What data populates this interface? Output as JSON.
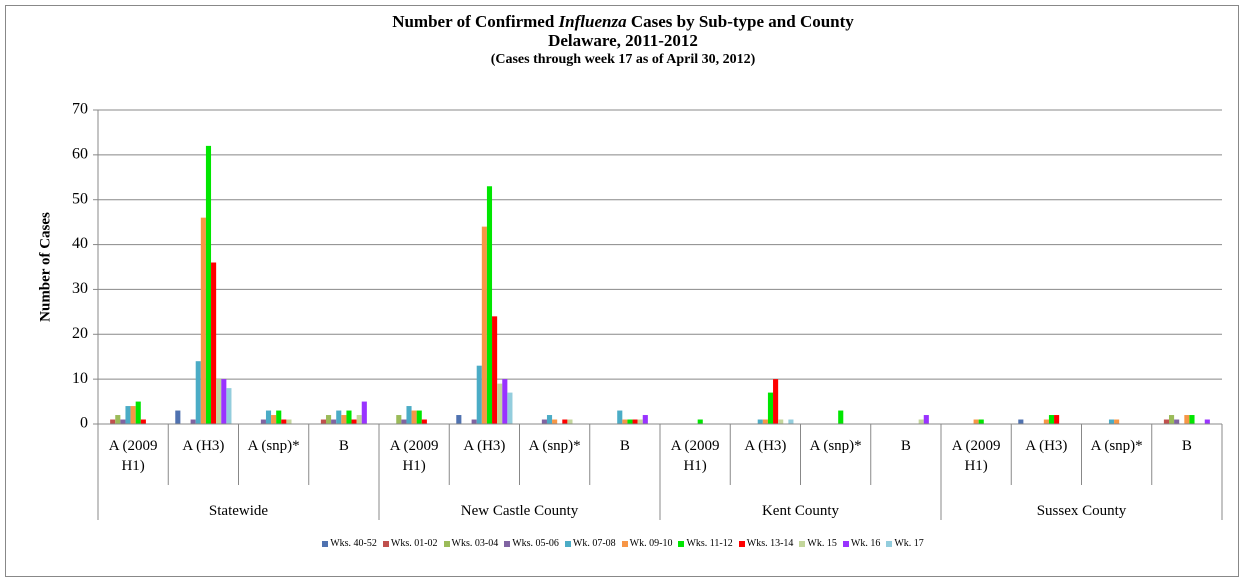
{
  "chart_data": {
    "type": "bar",
    "title": [
      "Number of Confirmed",
      "Influenza",
      "Cases by Sub-type and County"
    ],
    "subtitle": "Delaware, 2011-2012",
    "note": "(Cases through week 17 as of April 30, 2012)",
    "y_label": "Number of Cases",
    "groups": [
      "Statewide",
      "New Castle County",
      "Kent County",
      "Sussex County"
    ],
    "categories": [
      "A (2009 H1)",
      "A (H3)",
      "A (snp)*",
      "B",
      "A (2009 H1)",
      "A (H3)",
      "A (snp)*",
      "B",
      "A (2009 H1)",
      "A (H3)",
      "A (snp)*",
      "B",
      "A (2009 H1)",
      "A (H3)",
      "A (snp)*",
      "B"
    ],
    "ylim": [
      0,
      70
    ],
    "yticks": [
      0,
      10,
      20,
      30,
      40,
      50,
      60,
      70
    ],
    "grid": true,
    "legend": "bottom",
    "series": [
      {
        "name": "Wks. 40-52",
        "color": "#4f72b0",
        "values": [
          0,
          3,
          0,
          0,
          0,
          2,
          0,
          0,
          0,
          0,
          0,
          0,
          0,
          1,
          0,
          0
        ]
      },
      {
        "name": "Wks. 01-02",
        "color": "#c0504d",
        "values": [
          1,
          0,
          0,
          1,
          0,
          0,
          0,
          0,
          0,
          0,
          0,
          0,
          0,
          0,
          0,
          1
        ]
      },
      {
        "name": "Wks. 03-04",
        "color": "#9bbb59",
        "values": [
          2,
          0,
          0,
          2,
          2,
          0,
          0,
          0,
          0,
          0,
          0,
          0,
          0,
          0,
          0,
          2
        ]
      },
      {
        "name": "Wks. 05-06",
        "color": "#8064a2",
        "values": [
          1,
          1,
          1,
          1,
          1,
          1,
          1,
          0,
          0,
          0,
          0,
          0,
          0,
          0,
          0,
          1
        ]
      },
      {
        "name": "Wk. 07-08",
        "color": "#4bacc6",
        "values": [
          4,
          14,
          3,
          3,
          4,
          13,
          2,
          3,
          0,
          1,
          0,
          0,
          0,
          0,
          1,
          0
        ]
      },
      {
        "name": "Wk. 09-10",
        "color": "#f79646",
        "values": [
          4,
          46,
          2,
          2,
          3,
          44,
          1,
          1,
          0,
          1,
          0,
          0,
          1,
          1,
          1,
          2
        ]
      },
      {
        "name": "Wks. 11-12",
        "color": "#00e600",
        "values": [
          5,
          62,
          3,
          3,
          3,
          53,
          0,
          1,
          1,
          7,
          3,
          0,
          1,
          2,
          0,
          2
        ]
      },
      {
        "name": "Wks. 13-14",
        "color": "#ff0000",
        "values": [
          1,
          36,
          1,
          1,
          1,
          24,
          1,
          1,
          0,
          10,
          0,
          0,
          0,
          2,
          0,
          0
        ]
      },
      {
        "name": "Wk. 15",
        "color": "#c3d69b",
        "values": [
          0,
          10,
          1,
          2,
          0,
          9,
          1,
          1,
          0,
          1,
          0,
          1,
          0,
          0,
          0,
          0
        ]
      },
      {
        "name": "Wk. 16",
        "color": "#9933ff",
        "values": [
          0,
          10,
          0,
          5,
          0,
          10,
          0,
          2,
          0,
          0,
          0,
          2,
          0,
          0,
          0,
          1
        ]
      },
      {
        "name": "Wk. 17",
        "color": "#93cddd",
        "values": [
          0,
          8,
          0,
          0,
          0,
          7,
          0,
          0,
          0,
          1,
          0,
          0,
          0,
          0,
          0,
          0
        ]
      }
    ]
  }
}
